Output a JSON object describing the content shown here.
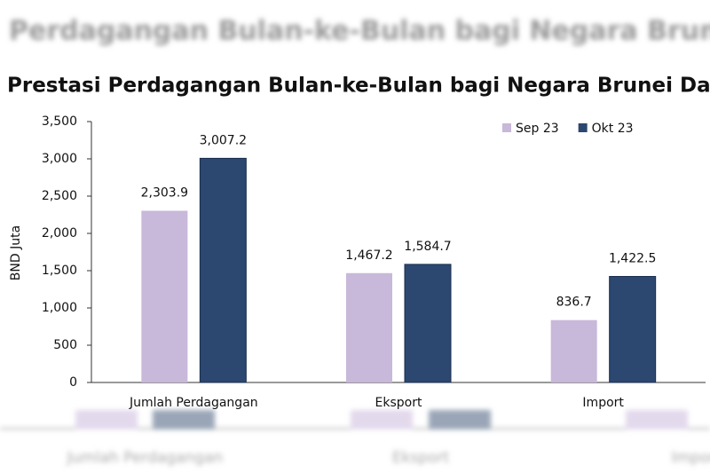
{
  "backdrop_title": "Perdagangan Bulan-ke-Bulan bagi Negara Brunei Darussalam",
  "chart_data": {
    "type": "bar",
    "title": "Prestasi Perdagangan Bulan-ke-Bulan bagi Negara Brunei Darussalam",
    "y_label": "BND Juta",
    "categories": [
      "Jumlah Perdagangan",
      "Eksport",
      "Import"
    ],
    "series": [
      {
        "name": "Sep 23",
        "color": "#c8b8d9",
        "values": [
          2303.9,
          1467.2,
          836.7
        ],
        "value_labels": [
          "2,303.9",
          "1,467.2",
          "836.7"
        ]
      },
      {
        "name": "Okt 23",
        "color": "#2c4770",
        "values": [
          3007.2,
          1584.7,
          1422.5
        ],
        "value_labels": [
          "3,007.2",
          "1,584.7",
          "1,422.5"
        ]
      }
    ],
    "ylim": [
      0,
      3500
    ],
    "yticks": [
      0,
      500,
      {
        "value": 1000,
        "label": "1,000"
      },
      {
        "value": 1500,
        "label": "1,500"
      },
      {
        "value": 2000,
        "label": "2,000"
      },
      {
        "value": 2500,
        "label": "2,500"
      },
      {
        "value": 3000,
        "label": "3,000"
      },
      {
        "value": 3500,
        "label": "3,500"
      }
    ],
    "grid": false,
    "legend": "top-right"
  }
}
